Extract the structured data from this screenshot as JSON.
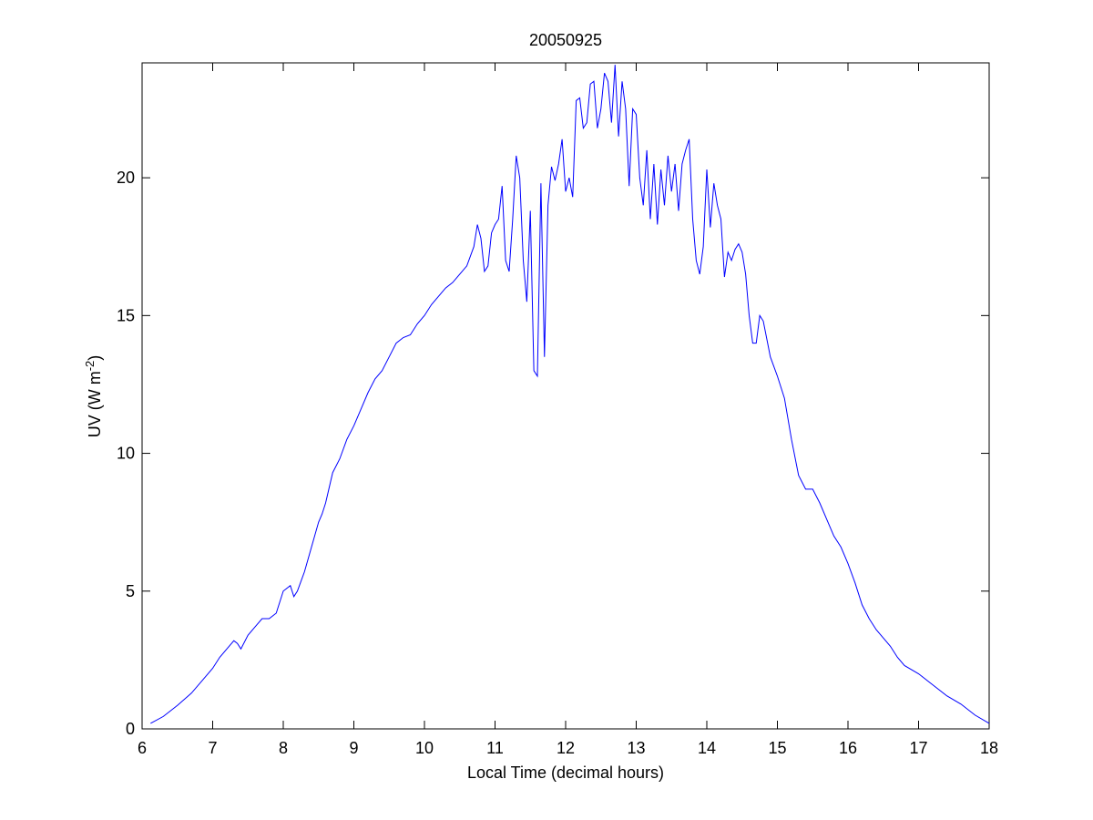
{
  "chart_data": {
    "type": "line",
    "title": "20050925",
    "xlabel": "Local Time (decimal hours)",
    "ylabel": [
      "UV (W m",
      "-2",
      ")"
    ],
    "xlim": [
      6,
      18
    ],
    "ylim": [
      0,
      24.17
    ],
    "xticks": [
      6,
      7,
      8,
      9,
      10,
      11,
      12,
      13,
      14,
      15,
      16,
      17,
      18
    ],
    "yticks": [
      0,
      5,
      10,
      15,
      20
    ],
    "grid": false,
    "series": [
      {
        "name": "UV",
        "color": "#0000ff",
        "x": [
          6.12,
          6.3,
          6.5,
          6.7,
          6.9,
          7.0,
          7.1,
          7.2,
          7.3,
          7.35,
          7.4,
          7.5,
          7.6,
          7.7,
          7.8,
          7.9,
          8.0,
          8.1,
          8.15,
          8.2,
          8.3,
          8.4,
          8.5,
          8.55,
          8.6,
          8.7,
          8.8,
          8.9,
          9.0,
          9.1,
          9.2,
          9.3,
          9.4,
          9.5,
          9.6,
          9.7,
          9.8,
          9.9,
          10.0,
          10.1,
          10.2,
          10.3,
          10.4,
          10.5,
          10.6,
          10.7,
          10.75,
          10.8,
          10.85,
          10.9,
          10.95,
          11.0,
          11.05,
          11.1,
          11.15,
          11.2,
          11.25,
          11.3,
          11.35,
          11.4,
          11.45,
          11.5,
          11.55,
          11.6,
          11.65,
          11.7,
          11.75,
          11.8,
          11.85,
          11.9,
          11.95,
          12.0,
          12.05,
          12.1,
          12.15,
          12.2,
          12.25,
          12.3,
          12.35,
          12.4,
          12.45,
          12.5,
          12.55,
          12.6,
          12.65,
          12.7,
          12.75,
          12.8,
          12.85,
          12.9,
          12.95,
          13.0,
          13.05,
          13.1,
          13.15,
          13.2,
          13.25,
          13.3,
          13.35,
          13.4,
          13.45,
          13.5,
          13.55,
          13.6,
          13.65,
          13.7,
          13.75,
          13.8,
          13.85,
          13.9,
          13.95,
          14.0,
          14.05,
          14.1,
          14.15,
          14.2,
          14.25,
          14.3,
          14.35,
          14.4,
          14.45,
          14.5,
          14.55,
          14.6,
          14.65,
          14.7,
          14.75,
          14.8,
          14.9,
          15.0,
          15.1,
          15.2,
          15.3,
          15.4,
          15.5,
          15.6,
          15.7,
          15.8,
          15.9,
          16.0,
          16.1,
          16.2,
          16.3,
          16.4,
          16.5,
          16.6,
          16.7,
          16.8,
          17.0,
          17.2,
          17.4,
          17.6,
          17.8,
          18.0
        ],
        "values": [
          0.2,
          0.45,
          0.85,
          1.3,
          1.9,
          2.2,
          2.6,
          2.9,
          3.2,
          3.1,
          2.9,
          3.4,
          3.7,
          4.0,
          4.0,
          4.2,
          5.0,
          5.2,
          4.8,
          5.0,
          5.7,
          6.6,
          7.5,
          7.8,
          8.2,
          9.3,
          9.8,
          10.5,
          11.0,
          11.6,
          12.2,
          12.7,
          13.0,
          13.5,
          14.0,
          14.2,
          14.3,
          14.7,
          15.0,
          15.4,
          15.7,
          16.0,
          16.2,
          16.5,
          16.8,
          17.5,
          18.3,
          17.8,
          16.6,
          16.8,
          18.0,
          18.3,
          18.5,
          19.7,
          17.0,
          16.6,
          18.5,
          20.8,
          20.0,
          17.0,
          15.5,
          18.8,
          13.0,
          12.8,
          19.8,
          13.5,
          19.0,
          20.4,
          19.9,
          20.5,
          21.4,
          19.5,
          20.0,
          19.3,
          22.8,
          22.9,
          21.8,
          22.0,
          23.4,
          23.5,
          21.8,
          22.5,
          23.8,
          23.5,
          22.0,
          24.1,
          21.5,
          23.5,
          22.5,
          19.7,
          22.5,
          22.3,
          20.0,
          19.0,
          21.0,
          18.5,
          20.5,
          18.3,
          20.3,
          19.0,
          20.8,
          19.5,
          20.5,
          18.8,
          20.5,
          21.0,
          21.4,
          18.5,
          17.0,
          16.5,
          17.5,
          20.3,
          18.2,
          19.8,
          19.0,
          18.5,
          16.4,
          17.3,
          17.0,
          17.4,
          17.6,
          17.3,
          16.5,
          15.0,
          14.0,
          14.0,
          15.0,
          14.8,
          13.5,
          12.8,
          12.0,
          10.5,
          9.2,
          8.7,
          8.7,
          8.2,
          7.6,
          7.0,
          6.6,
          6.0,
          5.3,
          4.5,
          4.0,
          3.6,
          3.3,
          3.0,
          2.6,
          2.3,
          2.0,
          1.6,
          1.2,
          0.9,
          0.5,
          0.2
        ]
      }
    ]
  }
}
